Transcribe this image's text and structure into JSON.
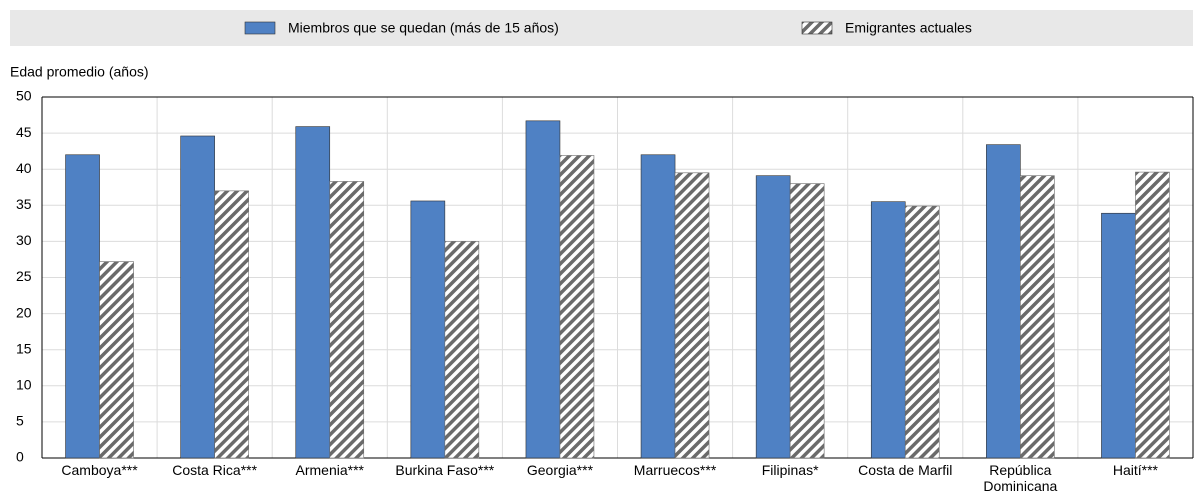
{
  "chart_data": {
    "type": "bar",
    "y_axis_label": "Edad promedio (años)",
    "categories": [
      "Camboya***",
      "Costa Rica***",
      "Armenia***",
      "Burkina Faso***",
      "Georgia***",
      "Marruecos***",
      "Filipinas*",
      "Costa de Marfil",
      "República Dominicana",
      "Haití***"
    ],
    "series": [
      {
        "name": "Miembros que se quedan (más de 15 años)",
        "color": "#4f81c4",
        "hatch": false,
        "values": [
          42,
          44.6,
          45.9,
          35.6,
          46.7,
          42,
          39.1,
          35.5,
          43.4,
          33.9
        ]
      },
      {
        "name": "Emigrantes actuales",
        "color": "#6b6b6b",
        "hatch": true,
        "values": [
          27.2,
          37,
          38.3,
          30,
          41.9,
          39.5,
          38,
          34.9,
          39.1,
          39.6
        ]
      }
    ],
    "ylim": [
      0,
      50
    ],
    "yticks": [
      0,
      5,
      10,
      15,
      20,
      25,
      30,
      35,
      40,
      45,
      50
    ],
    "grid": true,
    "legend": "top"
  }
}
